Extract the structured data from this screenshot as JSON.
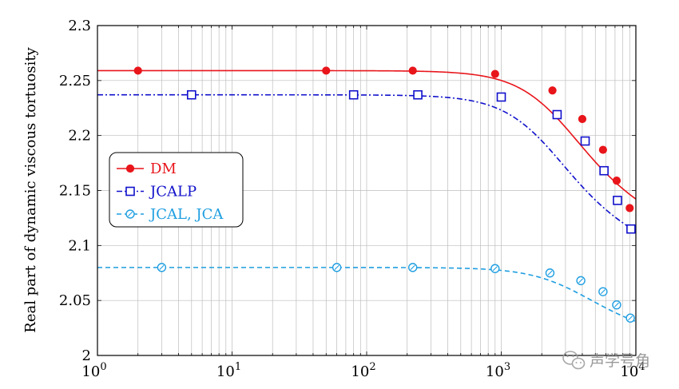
{
  "chart_data": {
    "type": "line",
    "xscale": "log",
    "xlim": [
      1,
      10000
    ],
    "ylim": [
      2.0,
      2.3
    ],
    "xlabel": "",
    "ylabel": "Real part of dynamic viscous tortuosity",
    "grid": true,
    "legend_position": "center-left",
    "x_ticks": [
      1,
      10,
      100,
      1000,
      10000
    ],
    "x_tick_labels": [
      {
        "base": "10",
        "exp": "0"
      },
      {
        "base": "10",
        "exp": "1"
      },
      {
        "base": "10",
        "exp": "2"
      },
      {
        "base": "10",
        "exp": "3"
      },
      {
        "base": "10",
        "exp": "4"
      }
    ],
    "y_ticks": [
      2.0,
      2.05,
      2.1,
      2.15,
      2.2,
      2.25,
      2.3
    ],
    "y_tick_labels": [
      "2",
      "2.05",
      "2.1",
      "2.15",
      "2.2",
      "2.25",
      "2.3"
    ],
    "series": [
      {
        "name": "DM",
        "color": "#e8151b",
        "line_style": "solid",
        "marker": "filled-circle",
        "curve": {
          "level": 2.259,
          "f0": 3200,
          "drop": -0.094
        },
        "x": [
          2,
          50,
          220,
          900,
          2400,
          4000,
          5700,
          7200,
          9000
        ],
        "values": [
          2.259,
          2.259,
          2.259,
          2.256,
          2.241,
          2.215,
          2.187,
          2.159,
          2.134
        ]
      },
      {
        "name": "JCALP",
        "color": "#1010cc",
        "line_style": "dashdot",
        "marker": "open-square",
        "curve": {
          "level": 2.237,
          "f0": 2500,
          "drop": -0.093
        },
        "x": [
          5,
          80,
          240,
          1000,
          2600,
          4200,
          5800,
          7300,
          9200
        ],
        "values": [
          2.237,
          2.237,
          2.237,
          2.235,
          2.219,
          2.195,
          2.168,
          2.141,
          2.115
        ]
      },
      {
        "name": "JCAL, JCA",
        "color": "#1f9ee0",
        "line_style": "dashed",
        "marker": "open-circle",
        "curve": {
          "level": 2.08,
          "f0": 4000,
          "drop": -0.043
        },
        "x": [
          3,
          60,
          220,
          900,
          2300,
          3900,
          5700,
          7200,
          9100
        ],
        "values": [
          2.08,
          2.08,
          2.08,
          2.079,
          2.075,
          2.068,
          2.058,
          2.046,
          2.034
        ]
      }
    ]
  },
  "watermark": {
    "text": "声学号角",
    "icon": "wechat-logo-icon"
  }
}
